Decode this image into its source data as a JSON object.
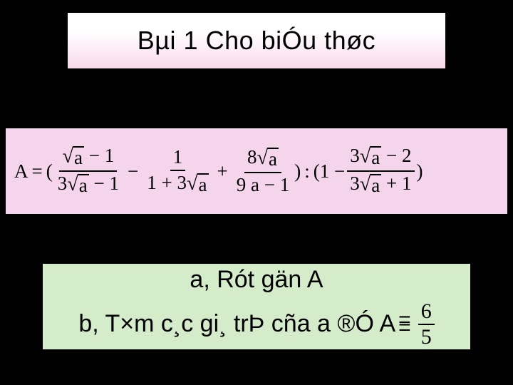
{
  "box1": {
    "text": "Bµi 1 Cho biÓu thøc",
    "bg_gradient_from": "#ffffff",
    "bg_gradient_to": "#f9d8ec",
    "font_size": 36
  },
  "box2": {
    "bg": "#f4d5eb",
    "formula": {
      "lhs": "A",
      "eq": "=",
      "open": "(",
      "term1": {
        "num_pre": "",
        "num_sqrt": "a",
        "num_post": " − 1",
        "den_pre": "3",
        "den_sqrt": "a",
        "den_post": " − 1"
      },
      "minus1": "−",
      "term2": {
        "num": "1",
        "den_pre": "1 + 3",
        "den_sqrt": "a",
        "den_post": ""
      },
      "plus": "+",
      "term3": {
        "num_pre": "8",
        "num_sqrt": "a",
        "num_post": "",
        "den": "9 a − 1"
      },
      "close": ")",
      "colon": ":",
      "open2": "(1 −",
      "term4": {
        "num_pre": "3",
        "num_sqrt": "a",
        "num_post": " − 2",
        "den_pre": "3",
        "den_sqrt": "a",
        "den_post": " + 1"
      },
      "close2": ")"
    }
  },
  "box3": {
    "bg": "#d4ecc9",
    "line_a": "a, Rót gän A",
    "line_b_prefix": "b, T×m c¸c gi¸ trÞ cña a ®Ó A ",
    "frac": {
      "num": "6",
      "den": "5"
    },
    "font_size": 34
  }
}
